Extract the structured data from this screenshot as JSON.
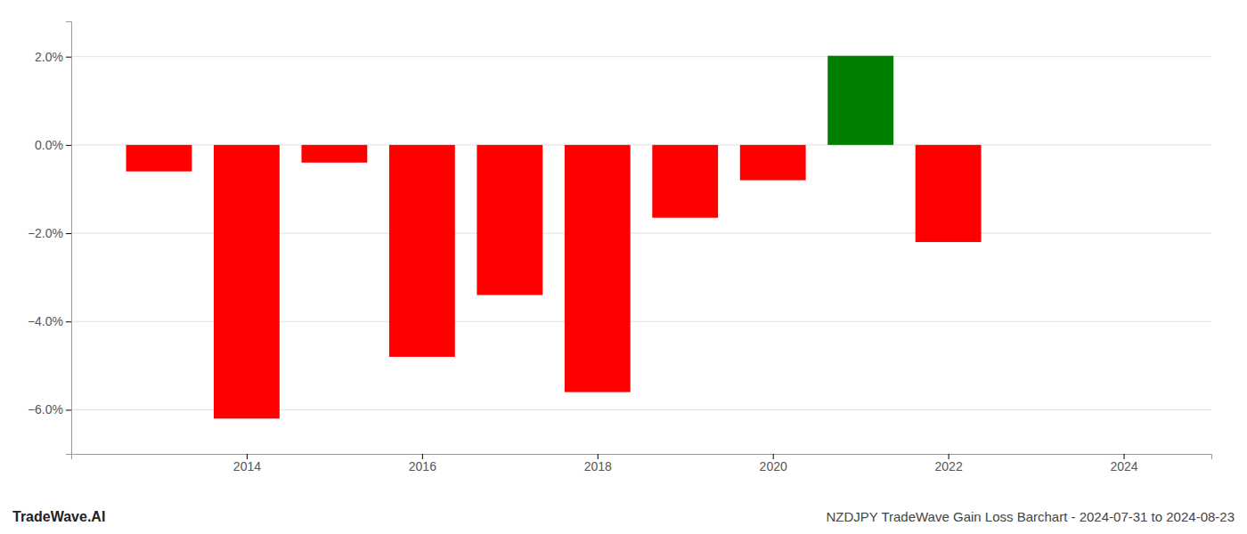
{
  "chart_data": {
    "type": "bar",
    "title": "NZDJPY TradeWave Gain Loss Barchart - 2024-07-31 to 2024-08-23",
    "annotations": [
      "TradeWave.AI"
    ],
    "x": [
      2013,
      2014,
      2015,
      2016,
      2017,
      2018,
      2019,
      2020,
      2021,
      2022
    ],
    "values": [
      -0.6,
      -6.2,
      -0.4,
      -4.8,
      -3.4,
      -5.6,
      -1.65,
      -0.8,
      2.02,
      -2.2
    ],
    "colors": [
      "red",
      "red",
      "red",
      "red",
      "red",
      "red",
      "red",
      "red",
      "green",
      "red"
    ],
    "xlim": [
      2012.0,
      2025.0
    ],
    "xticks": [
      2014,
      2016,
      2018,
      2020,
      2022,
      2024
    ],
    "ylim": [
      -7.0,
      2.8
    ],
    "yticks": [
      {
        "value": 2.0,
        "label": "2.0%"
      },
      {
        "value": 0.0,
        "label": "0.0%"
      },
      {
        "value": -2.0,
        "label": "−2.0%"
      },
      {
        "value": -4.0,
        "label": "−4.0%"
      },
      {
        "value": -6.0,
        "label": "−6.0%"
      }
    ],
    "grid": true
  }
}
